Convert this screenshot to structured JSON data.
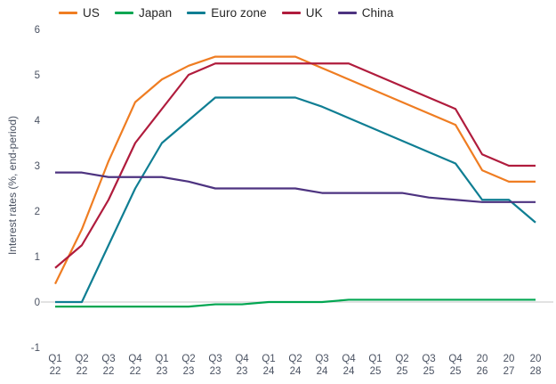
{
  "legend_items": [
    "US",
    "Japan",
    "Euro zone",
    "UK",
    "China"
  ],
  "colors": {
    "background": "#FFFFFF",
    "zero_line": "#D9D9D9",
    "axis_text": "#4A5262",
    "legend_text": "#262626",
    "us": "#EF7D22",
    "japan": "#00A651",
    "euro_zone": "#0F7E93",
    "uk": "#B01C3D",
    "china": "#4D3380"
  },
  "chart_data": {
    "type": "line",
    "title": "",
    "xlabel": "",
    "ylabel": "Interest rates (%, end-period)",
    "ylim": [
      -1,
      6
    ],
    "y_ticks": [
      6,
      5,
      4,
      3,
      2,
      1,
      0,
      -1
    ],
    "grid": "zero-line-only",
    "legend_position": "top",
    "categories": [
      "Q1 22",
      "Q2 22",
      "Q3 22",
      "Q4 22",
      "Q1 23",
      "Q2 23",
      "Q3 23",
      "Q4 23",
      "Q1 24",
      "Q2 24",
      "Q3 24",
      "Q4 24",
      "Q1 25",
      "Q2 25",
      "Q3 25",
      "Q4 25",
      "20 26",
      "20 27",
      "20 28"
    ],
    "series": [
      {
        "name": "US",
        "color": "#EF7D22",
        "values": [
          0.4,
          1.6,
          3.1,
          4.4,
          4.9,
          5.2,
          5.4,
          5.4,
          5.4,
          5.4,
          5.15,
          4.9,
          4.65,
          4.4,
          4.15,
          3.9,
          2.9,
          2.65,
          2.65
        ]
      },
      {
        "name": "Japan",
        "color": "#00A651",
        "values": [
          -0.1,
          -0.1,
          -0.1,
          -0.1,
          -0.1,
          -0.1,
          -0.05,
          -0.05,
          0.0,
          0.0,
          0.0,
          0.05,
          0.05,
          0.05,
          0.05,
          0.05,
          0.05,
          0.05,
          0.05
        ]
      },
      {
        "name": "Euro zone",
        "color": "#0F7E93",
        "values": [
          0.0,
          0.0,
          1.25,
          2.5,
          3.5,
          4.0,
          4.5,
          4.5,
          4.5,
          4.5,
          4.3,
          4.05,
          3.8,
          3.55,
          3.3,
          3.05,
          2.25,
          2.25,
          1.75
        ]
      },
      {
        "name": "UK",
        "color": "#B01C3D",
        "values": [
          0.75,
          1.25,
          2.25,
          3.5,
          4.25,
          5.0,
          5.25,
          5.25,
          5.25,
          5.25,
          5.25,
          5.25,
          5.0,
          4.75,
          4.5,
          4.25,
          3.25,
          3.0,
          3.0
        ]
      },
      {
        "name": "China",
        "color": "#4D3380",
        "values": [
          2.85,
          2.85,
          2.75,
          2.75,
          2.75,
          2.65,
          2.5,
          2.5,
          2.5,
          2.5,
          2.4,
          2.4,
          2.4,
          2.4,
          2.3,
          2.25,
          2.2,
          2.2,
          2.2
        ]
      }
    ]
  }
}
